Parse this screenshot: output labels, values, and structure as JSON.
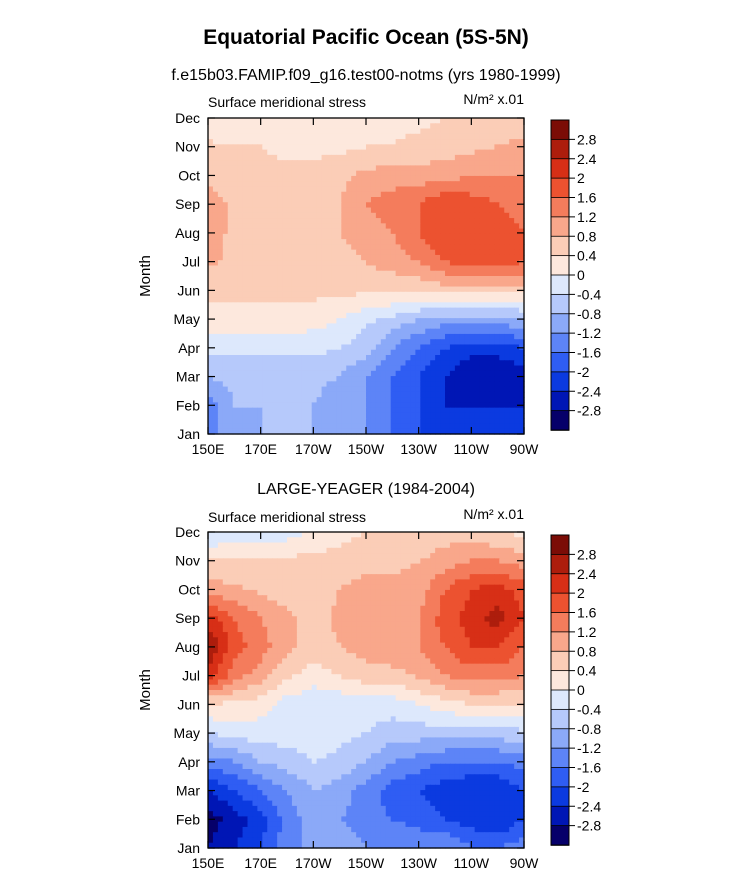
{
  "figure": {
    "title": "Equatorial Pacific Ocean (5S-5N)",
    "colors": [
      "#06006a",
      "#0016b5",
      "#0b3ae0",
      "#2f5df3",
      "#5d84f7",
      "#8ba9f8",
      "#b6c9fb",
      "#dde8fc",
      "#fde8dd",
      "#fbcdb7",
      "#f9a78b",
      "#f47c5c",
      "#ec5230",
      "#d72f16",
      "#ad1d0c",
      "#7b0c06"
    ],
    "levels": [
      -2.8,
      -2.4,
      -2,
      -1.6,
      -1.2,
      -0.8,
      -0.4,
      0,
      0.4,
      0.8,
      1.2,
      1.6,
      2,
      2.4,
      2.8
    ]
  },
  "chart_data": [
    {
      "type": "heatmap",
      "panel_title": "f.e15b03.FAMIP.f09_g16.test00-notms (yrs 1980-1999)",
      "field_label": "Surface meridional stress",
      "units_label": "N/m² x.01",
      "xlabel": "",
      "ylabel": "Month",
      "x_ticks": [
        "150E",
        "170E",
        "170W",
        "150W",
        "130W",
        "110W",
        "90W"
      ],
      "y_ticks": [
        "Jan",
        "Feb",
        "Mar",
        "Apr",
        "May",
        "Jun",
        "Jul",
        "Aug",
        "Sep",
        "Oct",
        "Nov",
        "Dec"
      ],
      "colorbar_labels": [
        "2.8",
        "2.4",
        "2",
        "1.6",
        "1.2",
        "0.8",
        "0.4",
        "0",
        "-0.4",
        "-0.8",
        "-1.2",
        "-1.6",
        "-2",
        "-2.4",
        "-2.8"
      ],
      "x": [
        150,
        160,
        170,
        180,
        190,
        200,
        210,
        220,
        230,
        240,
        250,
        260,
        270
      ],
      "months": [
        "Jan",
        "Feb",
        "Mar",
        "Apr",
        "May",
        "Jun",
        "Jul",
        "Aug",
        "Sep",
        "Oct",
        "Nov",
        "Dec"
      ],
      "z": [
        [
          -1.2,
          -1.2,
          -0.8,
          -0.8,
          -0.8,
          -1.2,
          -1.2,
          -1.6,
          -2.0,
          -2.0,
          -2.0,
          -2.0,
          -2.0
        ],
        [
          -1.5,
          -0.8,
          -0.8,
          -0.8,
          -0.8,
          -1.2,
          -1.2,
          -1.6,
          -2.0,
          -2.4,
          -2.4,
          -2.4,
          -2.4
        ],
        [
          -0.8,
          -0.6,
          -0.6,
          -0.6,
          -0.6,
          -0.8,
          -1.2,
          -1.6,
          -2.0,
          -2.4,
          -2.8,
          -2.8,
          -2.6
        ],
        [
          -0.3,
          -0.3,
          -0.3,
          -0.3,
          -0.3,
          -0.4,
          -0.6,
          -1.2,
          -1.6,
          -2.0,
          -2.2,
          -2.2,
          -2.0
        ],
        [
          0.3,
          0.3,
          0.3,
          0.3,
          0.2,
          0.0,
          -0.3,
          -0.5,
          -0.8,
          -1.0,
          -1.0,
          -1.0,
          -0.8
        ],
        [
          0.5,
          0.5,
          0.5,
          0.5,
          0.5,
          0.5,
          0.5,
          0.5,
          0.5,
          0.6,
          0.6,
          0.6,
          0.6
        ],
        [
          0.9,
          0.7,
          0.5,
          0.5,
          0.5,
          0.6,
          0.8,
          1.0,
          1.2,
          1.6,
          1.8,
          1.8,
          1.6
        ],
        [
          1.0,
          0.7,
          0.6,
          0.6,
          0.6,
          0.8,
          1.0,
          1.2,
          1.6,
          2.0,
          2.0,
          1.8,
          1.6
        ],
        [
          1.0,
          0.7,
          0.6,
          0.6,
          0.6,
          0.8,
          1.2,
          1.4,
          1.6,
          2.0,
          1.8,
          1.6,
          1.4
        ],
        [
          0.7,
          0.6,
          0.5,
          0.5,
          0.5,
          0.7,
          0.9,
          1.0,
          1.0,
          1.0,
          1.2,
          1.2,
          1.2
        ],
        [
          0.5,
          0.4,
          0.4,
          0.3,
          0.3,
          0.3,
          0.4,
          0.4,
          0.5,
          0.6,
          0.7,
          0.8,
          0.9
        ],
        [
          0.0,
          0.2,
          0.2,
          0.2,
          0.2,
          0.3,
          0.3,
          0.3,
          0.3,
          0.4,
          0.5,
          0.6,
          0.6
        ]
      ]
    },
    {
      "type": "heatmap",
      "panel_title": "LARGE-YEAGER (1984-2004)",
      "field_label": "Surface meridional stress",
      "units_label": "N/m² x.01",
      "xlabel": "",
      "ylabel": "Month",
      "x_ticks": [
        "150E",
        "170E",
        "170W",
        "150W",
        "130W",
        "110W",
        "90W"
      ],
      "y_ticks": [
        "Jan",
        "Feb",
        "Mar",
        "Apr",
        "May",
        "Jun",
        "Jul",
        "Aug",
        "Sep",
        "Oct",
        "Nov",
        "Dec"
      ],
      "colorbar_labels": [
        "2.8",
        "2.4",
        "2",
        "1.6",
        "1.2",
        "0.8",
        "0.4",
        "0",
        "-0.4",
        "-0.8",
        "-1.2",
        "-1.6",
        "-2",
        "-2.4",
        "-2.8"
      ],
      "x": [
        150,
        160,
        170,
        180,
        190,
        200,
        210,
        220,
        230,
        240,
        250,
        260,
        270
      ],
      "months": [
        "Jan",
        "Feb",
        "Mar",
        "Apr",
        "May",
        "Jun",
        "Jul",
        "Aug",
        "Sep",
        "Oct",
        "Nov",
        "Dec"
      ],
      "z": [
        [
          -2.8,
          -2.4,
          -2.0,
          -1.4,
          -1.0,
          -1.0,
          -1.2,
          -1.2,
          -1.2,
          -1.2,
          -1.6,
          -1.6,
          -1.4
        ],
        [
          -3.0,
          -2.6,
          -2.2,
          -1.4,
          -1.0,
          -1.2,
          -1.4,
          -1.6,
          -1.8,
          -2.0,
          -2.2,
          -2.4,
          -2.0
        ],
        [
          -2.4,
          -2.0,
          -1.6,
          -1.2,
          -0.8,
          -1.0,
          -1.4,
          -1.8,
          -2.0,
          -2.2,
          -2.4,
          -2.4,
          -2.0
        ],
        [
          -1.4,
          -1.2,
          -0.8,
          -0.6,
          -0.4,
          -0.5,
          -0.8,
          -1.2,
          -1.4,
          -1.6,
          -1.6,
          -1.6,
          -1.4
        ],
        [
          -0.4,
          -0.2,
          -0.2,
          -0.2,
          -0.2,
          -0.3,
          -0.4,
          -0.6,
          -0.6,
          -0.6,
          -0.6,
          -0.6,
          -0.5
        ],
        [
          0.4,
          0.3,
          0.2,
          -0.2,
          -0.3,
          -0.3,
          -0.2,
          -0.2,
          0.0,
          0.2,
          0.4,
          0.4,
          0.4
        ],
        [
          2.2,
          1.4,
          1.0,
          0.5,
          0.2,
          0.4,
          0.6,
          0.6,
          0.9,
          1.2,
          1.4,
          1.4,
          1.2
        ],
        [
          2.8,
          1.8,
          1.4,
          0.9,
          0.6,
          0.8,
          1.0,
          1.2,
          1.2,
          1.6,
          2.0,
          2.0,
          1.6
        ],
        [
          2.2,
          1.6,
          1.2,
          0.9,
          0.6,
          0.9,
          1.0,
          1.0,
          1.2,
          1.8,
          2.2,
          2.6,
          2.0
        ],
        [
          1.0,
          0.9,
          0.7,
          0.6,
          0.6,
          0.8,
          0.9,
          0.9,
          1.0,
          1.6,
          2.0,
          2.2,
          1.8
        ],
        [
          0.4,
          0.4,
          0.4,
          0.5,
          0.5,
          0.6,
          0.7,
          0.7,
          0.8,
          1.0,
          1.2,
          1.2,
          1.0
        ],
        [
          -0.4,
          -0.2,
          -0.2,
          -0.2,
          0.1,
          0.2,
          0.4,
          0.4,
          0.4,
          0.6,
          0.6,
          0.4,
          0.3
        ]
      ]
    }
  ]
}
